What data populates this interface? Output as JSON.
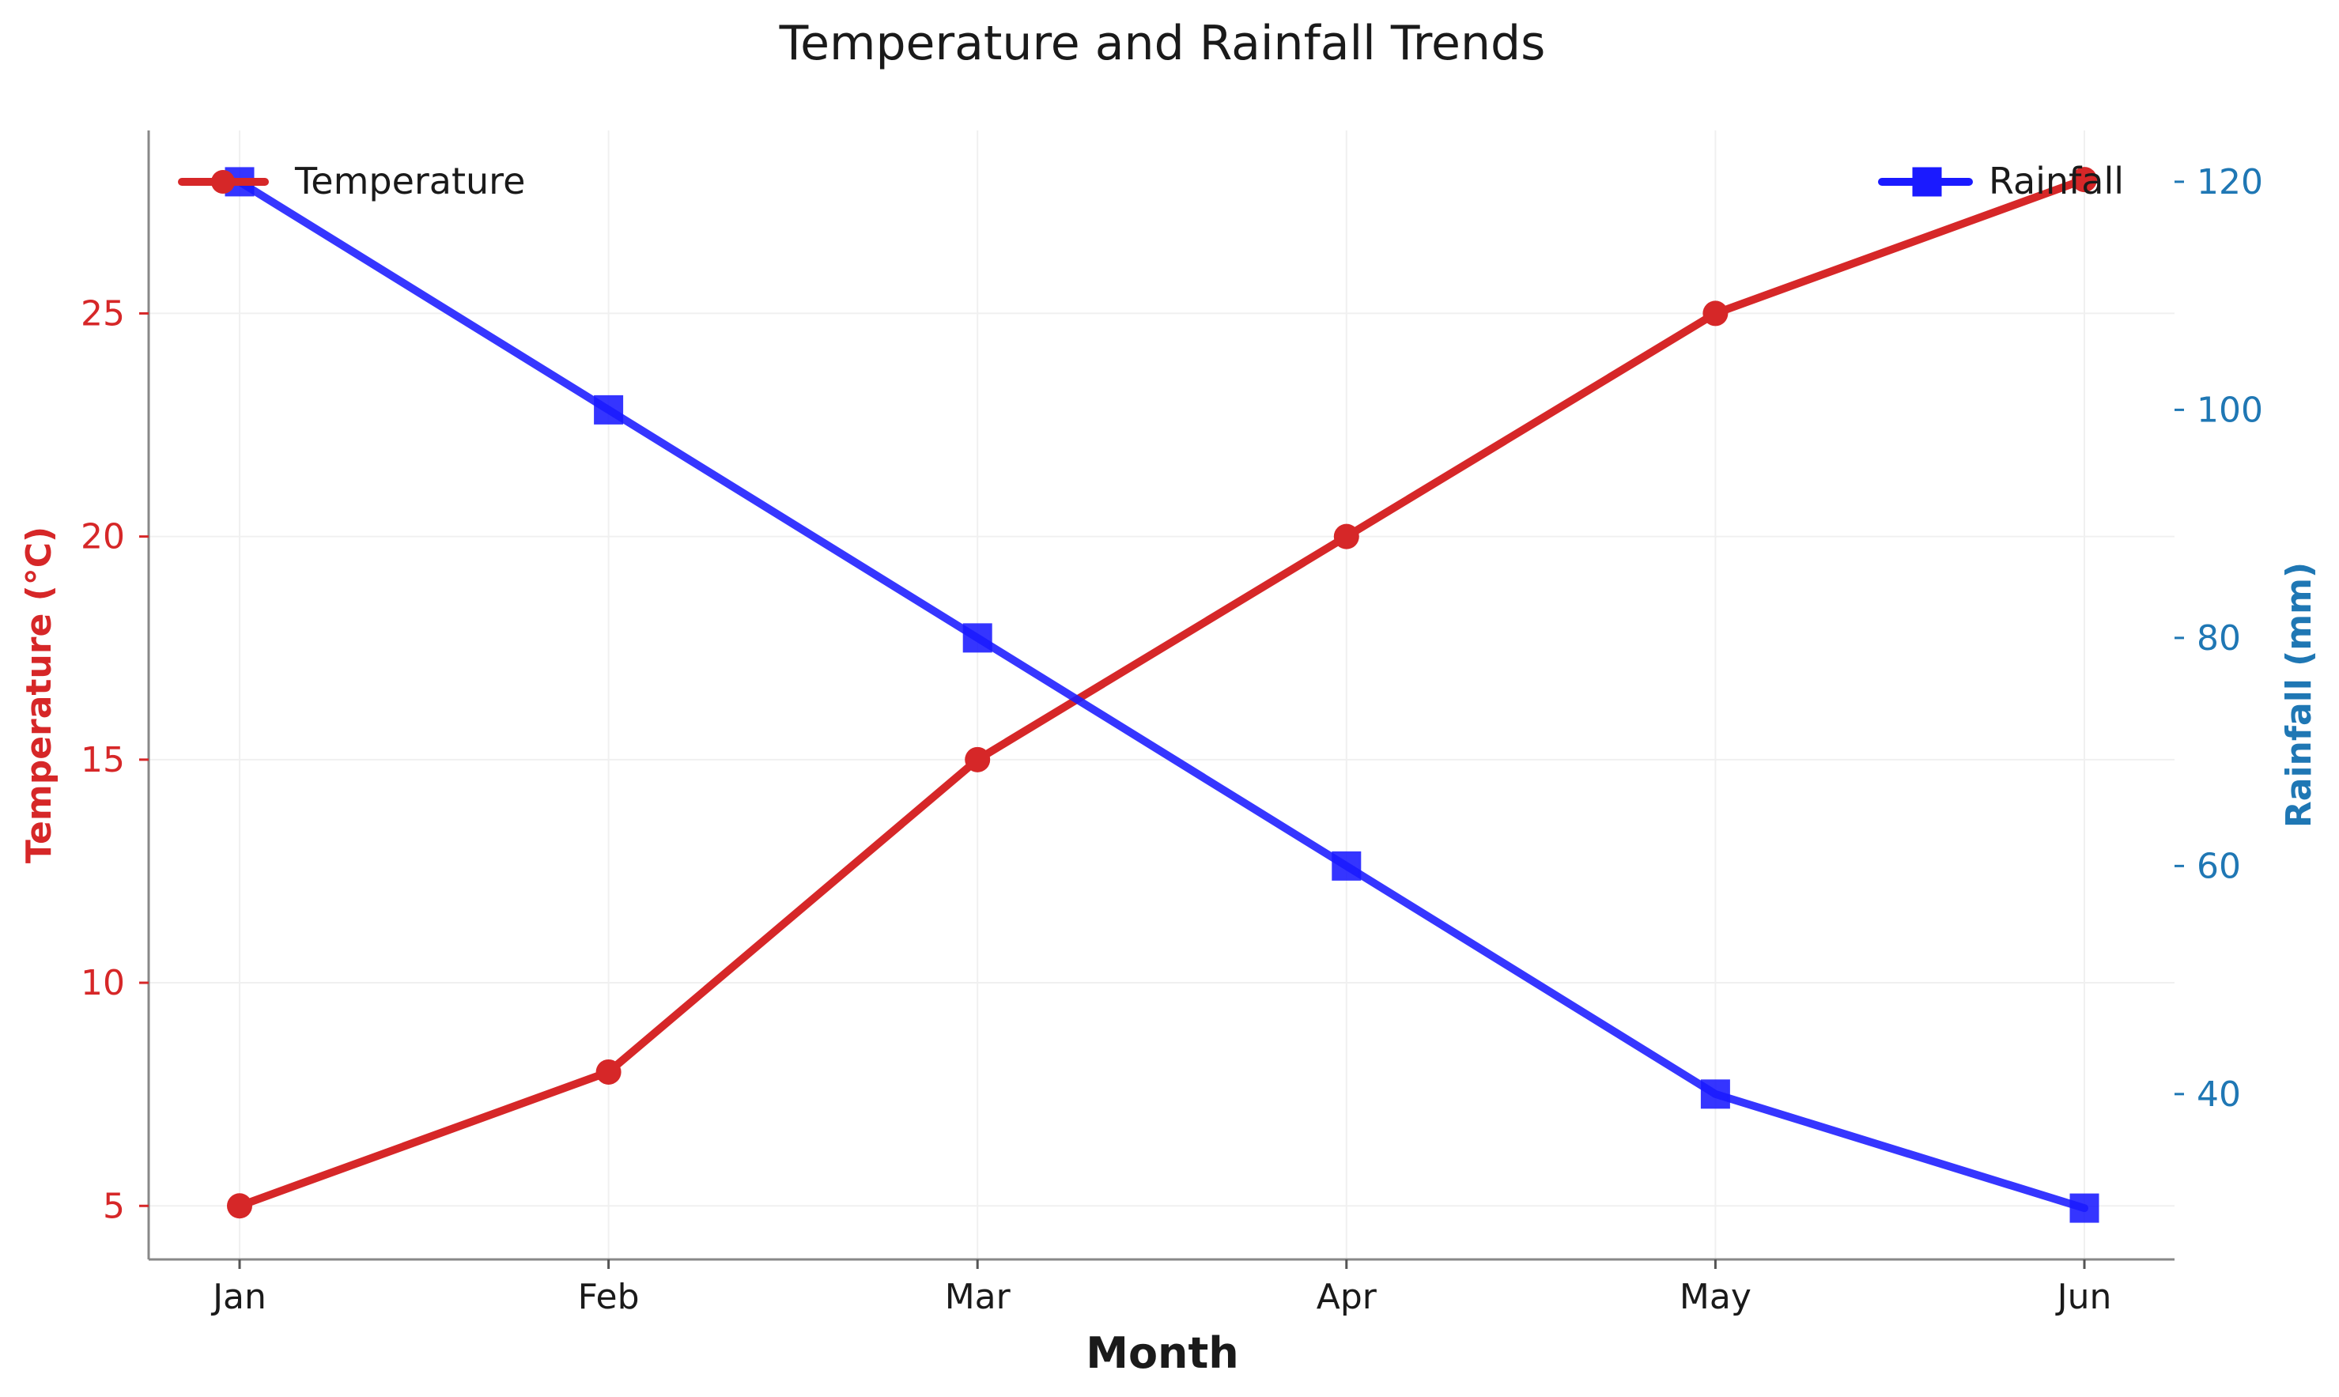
{
  "chart_data": {
    "type": "line",
    "title": "Temperature and Rainfall Trends",
    "xlabel": "Month",
    "ylabel_left": "Temperature (°C)",
    "ylabel_right": "Rainfall (mm)",
    "categories": [
      "Jan",
      "Feb",
      "Mar",
      "Apr",
      "May",
      "Jun"
    ],
    "series": [
      {
        "name": "Temperature",
        "axis": "left",
        "color": "#d62728",
        "marker": "circle",
        "values": [
          5,
          8,
          15,
          20,
          25,
          28
        ]
      },
      {
        "name": "Rainfall",
        "axis": "right",
        "color": "#1a1aff",
        "marker": "square",
        "values": [
          120,
          100,
          80,
          60,
          40,
          30
        ]
      }
    ],
    "ylim_left": [
      3.8,
      29.1
    ],
    "ylim_right": [
      25.5,
      124.5
    ],
    "yticks_left": [
      5,
      10,
      15,
      20,
      25
    ],
    "yticks_right": [
      40,
      60,
      80,
      100,
      120
    ],
    "left_axis_color": "#d62728",
    "right_axis_color": "#1f77b4",
    "grid": true,
    "legend_left_position": "top-left",
    "legend_right_position": "top-right"
  }
}
